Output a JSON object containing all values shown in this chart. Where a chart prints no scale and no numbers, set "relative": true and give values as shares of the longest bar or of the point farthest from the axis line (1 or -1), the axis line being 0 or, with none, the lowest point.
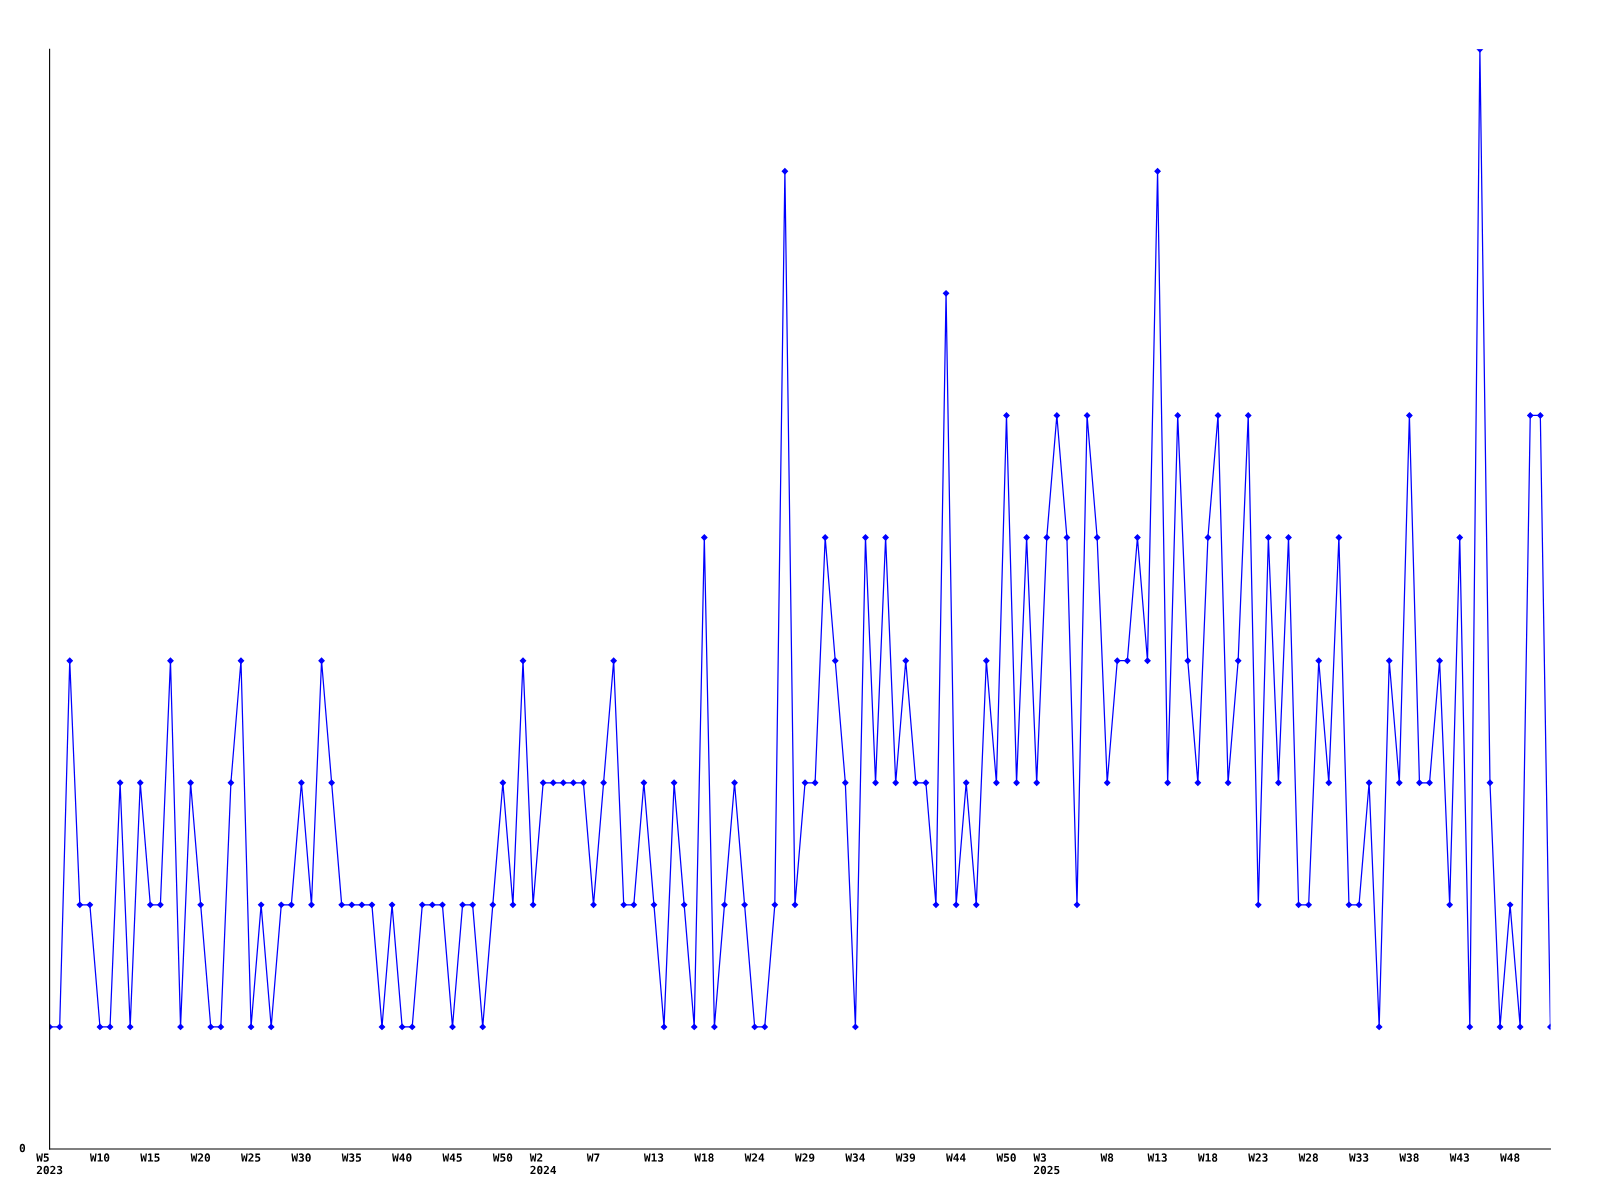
{
  "chart_data": {
    "type": "line",
    "relative": true,
    "marker": "diamond",
    "line_style": "solid",
    "annotations": [
      "0"
    ],
    "categories": [
      "W5\n2023",
      null,
      null,
      null,
      null,
      "W10",
      null,
      null,
      null,
      null,
      "W15",
      null,
      null,
      null,
      null,
      "W20",
      null,
      null,
      null,
      null,
      "W25",
      null,
      null,
      null,
      null,
      "W30",
      null,
      null,
      null,
      null,
      "W35",
      null,
      null,
      null,
      null,
      "W40",
      null,
      null,
      null,
      null,
      "W45",
      null,
      null,
      null,
      null,
      "W50",
      null,
      null,
      null,
      "W2\n2024",
      null,
      null,
      null,
      null,
      "W7",
      null,
      null,
      null,
      null,
      null,
      "W13",
      null,
      null,
      null,
      null,
      "W18",
      null,
      null,
      null,
      null,
      "W24",
      null,
      null,
      null,
      null,
      "W29",
      null,
      null,
      null,
      null,
      "W34",
      null,
      null,
      null,
      null,
      "W39",
      null,
      null,
      null,
      null,
      "W44",
      null,
      null,
      null,
      null,
      "W50",
      null,
      null,
      null,
      "W3\n2025",
      null,
      null,
      null,
      null,
      null,
      "W8",
      null,
      null,
      null,
      null,
      "W13",
      null,
      null,
      null,
      null,
      "W18",
      null,
      null,
      null,
      null,
      "W23",
      null,
      null,
      null,
      null,
      "W28",
      null,
      null,
      null,
      null,
      "W33",
      null,
      null,
      null,
      null,
      "W38",
      null,
      null,
      null,
      null,
      "W43",
      null,
      null,
      null,
      null,
      "W48",
      null,
      null,
      null,
      null
    ],
    "series": [
      {
        "color": "#0000ff",
        "values": [
          0.111,
          0.111,
          0.444,
          0.222,
          0.222,
          0.111,
          0.111,
          0.333,
          0.111,
          0.333,
          0.222,
          0.222,
          0.444,
          0.111,
          0.333,
          0.222,
          0.111,
          0.111,
          0.333,
          0.444,
          0.111,
          0.222,
          0.111,
          0.222,
          0.222,
          0.333,
          0.222,
          0.444,
          0.333,
          0.222,
          0.222,
          0.222,
          0.222,
          0.111,
          0.222,
          0.111,
          0.111,
          0.222,
          0.222,
          0.222,
          0.111,
          0.222,
          0.222,
          0.111,
          0.222,
          0.333,
          0.222,
          0.444,
          0.222,
          0.333,
          0.333,
          0.333,
          0.333,
          0.333,
          0.222,
          0.333,
          0.444,
          0.222,
          0.222,
          0.333,
          0.222,
          0.111,
          0.333,
          0.222,
          0.111,
          0.556,
          0.111,
          0.222,
          0.333,
          0.222,
          0.111,
          0.111,
          0.222,
          0.889,
          0.222,
          0.333,
          0.333,
          0.556,
          0.444,
          0.333,
          0.111,
          0.556,
          0.333,
          0.556,
          0.333,
          0.444,
          0.333,
          0.333,
          0.222,
          0.778,
          0.222,
          0.333,
          0.222,
          0.444,
          0.333,
          0.667,
          0.333,
          0.556,
          0.333,
          0.556,
          0.667,
          0.556,
          0.222,
          0.667,
          0.556,
          0.333,
          0.444,
          0.444,
          0.556,
          0.444,
          0.889,
          0.333,
          0.667,
          0.444,
          0.333,
          0.556,
          0.667,
          0.333,
          0.444,
          0.667,
          0.222,
          0.556,
          0.333,
          0.556,
          0.222,
          0.222,
          0.444,
          0.333,
          0.556,
          0.222,
          0.222,
          0.333,
          0.111,
          0.444,
          0.333,
          0.667,
          0.333,
          0.333,
          0.444,
          0.222,
          0.556,
          0.111,
          1,
          0.333,
          0.111,
          0.222,
          0.111,
          0.667,
          0.667,
          0.111
        ]
      }
    ]
  }
}
